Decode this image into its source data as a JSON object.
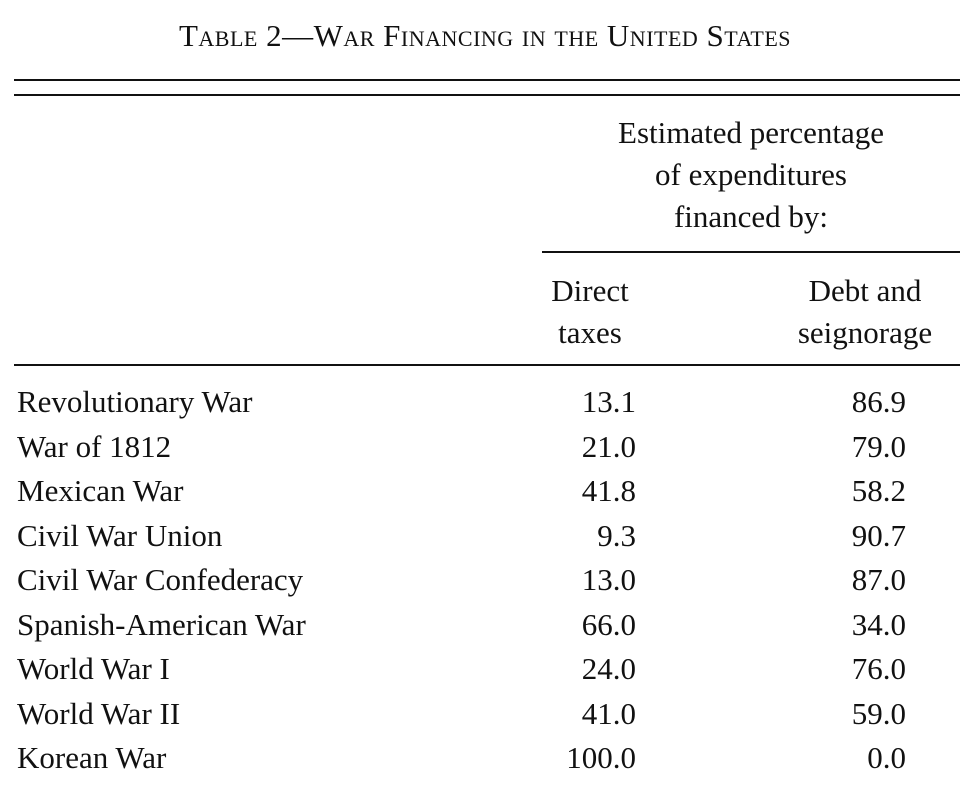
{
  "caption": "Table 2—War Financing in the United States",
  "spanner_lines": [
    "Estimated percentage",
    "of expenditures",
    "financed by:"
  ],
  "columns": {
    "direct": [
      "Direct",
      "taxes"
    ],
    "debt": [
      "Debt and",
      "seignorage"
    ]
  },
  "rows": [
    {
      "war": "Revolutionary War",
      "direct_taxes": "13.1",
      "debt_seignorage": "86.9"
    },
    {
      "war": "War of 1812",
      "direct_taxes": "21.0",
      "debt_seignorage": "79.0"
    },
    {
      "war": "Mexican War",
      "direct_taxes": "41.8",
      "debt_seignorage": "58.2"
    },
    {
      "war": "Civil War Union",
      "direct_taxes": "9.3",
      "debt_seignorage": "90.7"
    },
    {
      "war": "Civil War Confederacy",
      "direct_taxes": "13.0",
      "debt_seignorage": "87.0"
    },
    {
      "war": "Spanish-American War",
      "direct_taxes": "66.0",
      "debt_seignorage": "34.0"
    },
    {
      "war": "World War I",
      "direct_taxes": "24.0",
      "debt_seignorage": "76.0"
    },
    {
      "war": "World War II",
      "direct_taxes": "41.0",
      "debt_seignorage": "59.0"
    },
    {
      "war": "Korean War",
      "direct_taxes": "100.0",
      "debt_seignorage": "0.0"
    }
  ]
}
